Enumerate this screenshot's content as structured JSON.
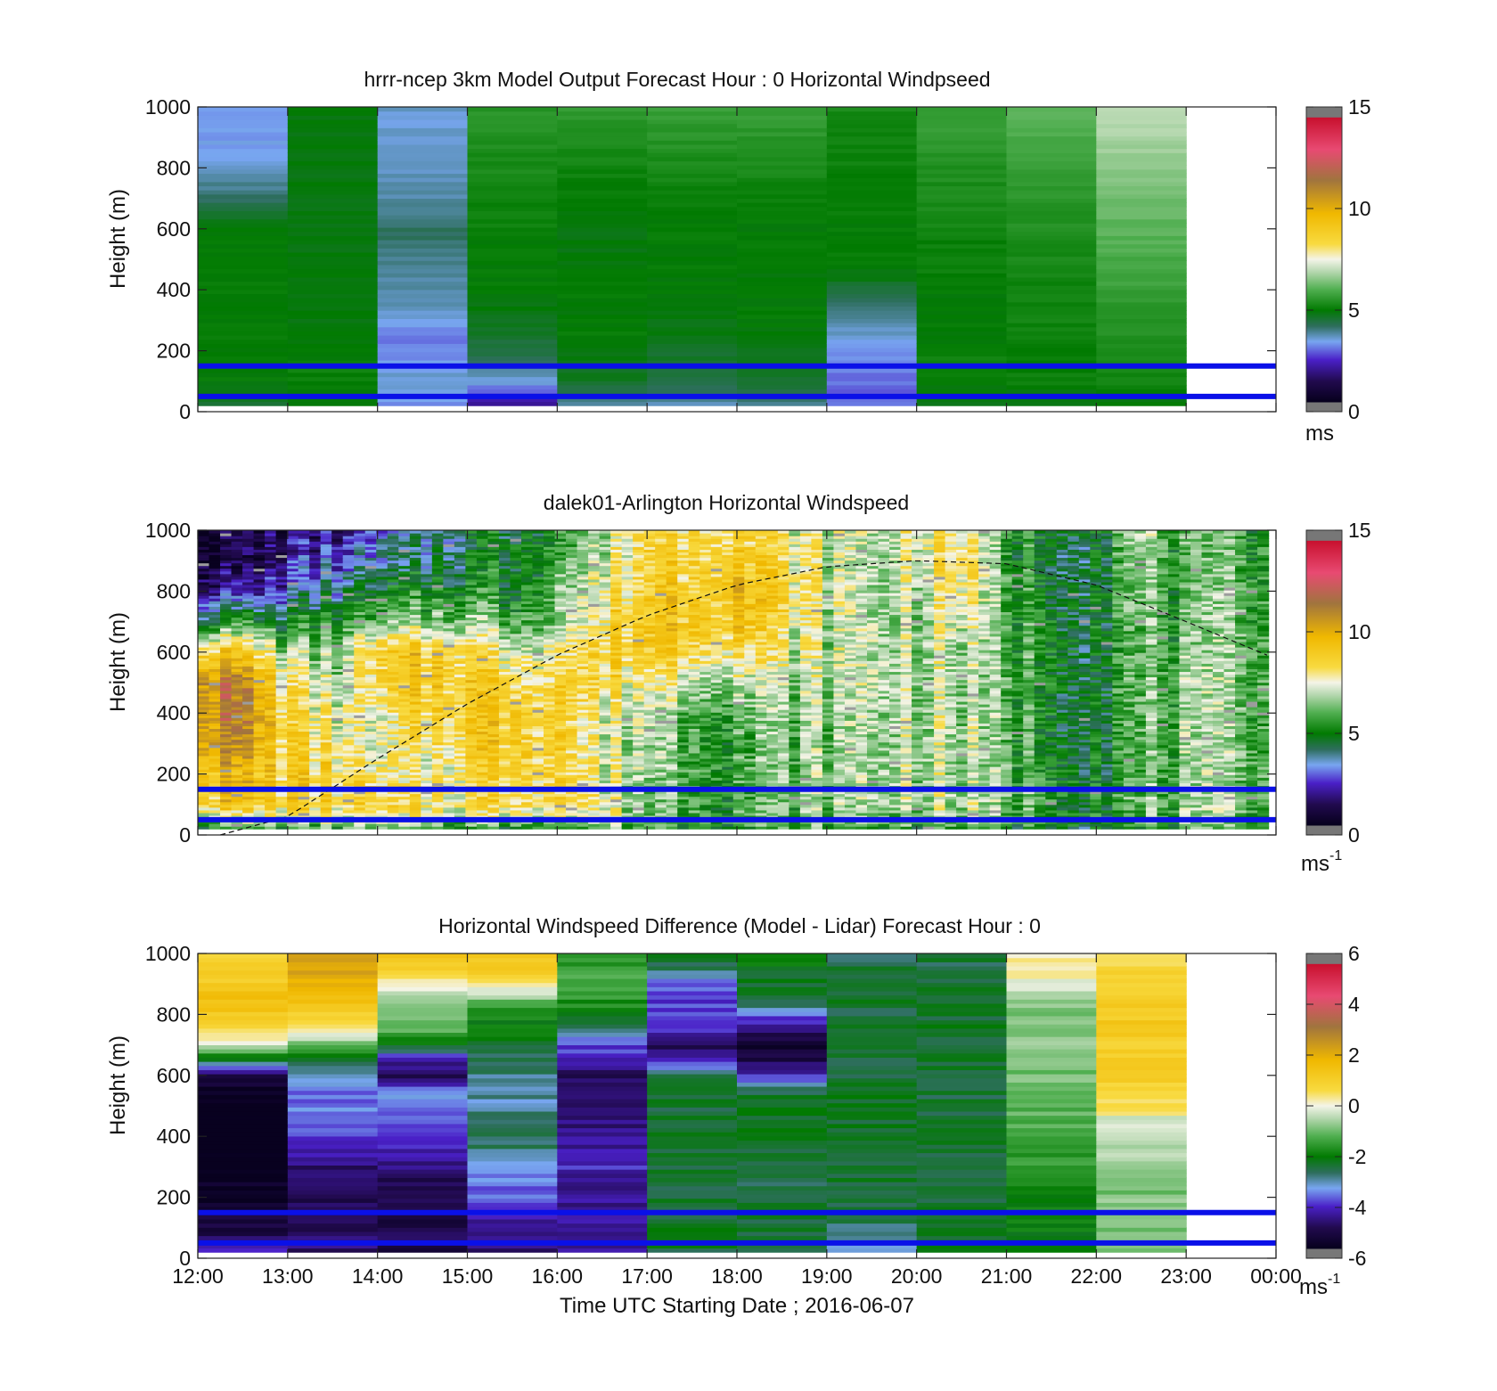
{
  "chart_data": [
    {
      "type": "heatmap",
      "title": "hrrr-ncep 3km Model Output   Forecast Hour : 0 Horizontal Windpseed",
      "ylabel": "Height (m)",
      "xlabel": "",
      "ylim": [
        0,
        1000
      ],
      "yticks": [
        "0",
        "200",
        "400",
        "600",
        "800",
        "1000"
      ],
      "xlim": [
        "12:00",
        "00:00"
      ],
      "xticks": [
        "12:00",
        "13:00",
        "14:00",
        "15:00",
        "16:00",
        "17:00",
        "18:00",
        "19:00",
        "20:00",
        "21:00",
        "22:00",
        "23:00",
        "00:00"
      ],
      "x_tick_labels_shown": false,
      "colorbar": {
        "min": 0,
        "max": 15,
        "ticks": [
          "0",
          "5",
          "10",
          "15"
        ],
        "unit": "ms",
        "unit_sup": ""
      },
      "columns": [
        "12:00",
        "13:00",
        "14:00",
        "15:00",
        "16:00",
        "17:00",
        "18:00",
        "19:00",
        "20:00",
        "21:00",
        "22:00"
      ],
      "heights_m": [
        20,
        50,
        80,
        100,
        150,
        200,
        250,
        300,
        350,
        400,
        450,
        500,
        550,
        600,
        700,
        800,
        900,
        1000
      ],
      "values": [
        [
          4.6,
          4.8,
          3.3,
          2.0,
          3.8,
          3.6,
          3.8,
          3.3,
          4.8,
          4.8,
          4.9
        ],
        [
          4.9,
          4.9,
          3.5,
          2.5,
          4.2,
          4.0,
          4.2,
          3.0,
          4.9,
          4.9,
          5.0
        ],
        [
          4.9,
          5.0,
          3.6,
          3.2,
          4.5,
          4.3,
          4.4,
          3.0,
          5.0,
          5.0,
          5.1
        ],
        [
          5.0,
          5.1,
          3.7,
          3.6,
          4.7,
          4.5,
          4.6,
          3.1,
          5.0,
          5.1,
          5.2
        ],
        [
          5.0,
          5.1,
          3.4,
          4.0,
          4.8,
          4.6,
          4.7,
          3.2,
          5.1,
          5.1,
          5.3
        ],
        [
          5.0,
          5.0,
          3.2,
          4.4,
          4.9,
          4.6,
          4.8,
          3.4,
          5.1,
          5.1,
          5.4
        ],
        [
          5.0,
          5.0,
          3.1,
          4.6,
          5.0,
          4.8,
          4.9,
          3.6,
          5.0,
          5.1,
          5.4
        ],
        [
          5.0,
          4.9,
          3.5,
          4.8,
          5.0,
          4.9,
          5.0,
          3.9,
          5.0,
          5.2,
          5.5
        ],
        [
          5.0,
          4.9,
          3.7,
          4.9,
          5.0,
          5.0,
          5.0,
          4.2,
          5.0,
          5.2,
          5.6
        ],
        [
          5.0,
          4.9,
          3.8,
          5.0,
          5.0,
          5.0,
          5.0,
          4.5,
          5.0,
          5.2,
          5.7
        ],
        [
          5.0,
          4.9,
          3.9,
          5.0,
          5.0,
          5.0,
          5.0,
          4.9,
          5.1,
          5.2,
          5.8
        ],
        [
          5.0,
          4.9,
          4.0,
          5.0,
          4.9,
          5.0,
          5.0,
          5.0,
          5.1,
          5.3,
          5.9
        ],
        [
          5.0,
          4.9,
          4.1,
          5.0,
          4.9,
          5.0,
          5.0,
          5.0,
          5.1,
          5.3,
          6.0
        ],
        [
          5.0,
          4.9,
          4.2,
          5.1,
          4.9,
          5.0,
          5.0,
          5.0,
          5.2,
          5.4,
          6.1
        ],
        [
          4.2,
          4.9,
          3.8,
          5.2,
          5.0,
          5.1,
          5.1,
          5.1,
          5.3,
          5.5,
          6.3
        ],
        [
          3.6,
          4.9,
          3.7,
          5.3,
          5.2,
          5.3,
          5.3,
          5.1,
          5.4,
          5.7,
          6.5
        ],
        [
          3.4,
          4.9,
          3.6,
          5.4,
          5.4,
          5.5,
          5.5,
          5.2,
          5.6,
          5.9,
          6.8
        ],
        [
          3.4,
          4.9,
          3.6,
          5.5,
          5.6,
          5.7,
          5.7,
          5.3,
          5.7,
          6.1,
          7.0
        ]
      ],
      "reference_lines_m": [
        50,
        150
      ],
      "reference_line_color": "#0a10e8"
    },
    {
      "type": "heatmap",
      "title": "dalek01-Arlington  Horizontal Windspeed",
      "ylabel": "Height (m)",
      "xlabel": "",
      "ylim": [
        0,
        1000
      ],
      "yticks": [
        "0",
        "200",
        "400",
        "600",
        "800",
        "1000"
      ],
      "xlim": [
        "12:00",
        "00:00"
      ],
      "x_tick_labels_shown": false,
      "colorbar": {
        "min": 0,
        "max": 15,
        "ticks": [
          "0",
          "5",
          "10",
          "15"
        ],
        "unit": "ms",
        "unit_sup": "-1"
      },
      "time_range_utc": [
        "12:00",
        "23:55"
      ],
      "columns_count": 48,
      "heights_m": [
        20,
        50,
        100,
        150,
        200,
        250,
        300,
        400,
        500,
        600,
        700,
        800,
        900,
        1000
      ],
      "hourly_profile_anchors_ms": {
        "hours": [
          12.0,
          12.5,
          13.0,
          13.5,
          14.0,
          14.5,
          15.0,
          15.5,
          16.0,
          16.5,
          17.0,
          17.5,
          18.0,
          18.5,
          19.0,
          19.5,
          20.0,
          20.5,
          21.0,
          21.5,
          22.0,
          22.5,
          23.0,
          23.5,
          23.9
        ],
        "profiles": [
          [
            5.5,
            7.0,
            9.0,
            9.2,
            9.5,
            10.0,
            10.5,
            11.0,
            11.2,
            9.0,
            5.0,
            2.5,
            1.2,
            1.0
          ],
          [
            5.5,
            7.0,
            9.0,
            9.3,
            9.5,
            10.0,
            10.5,
            11.0,
            11.0,
            9.0,
            5.5,
            2.2,
            1.0,
            1.0
          ],
          [
            5.6,
            7.0,
            8.8,
            8.8,
            8.8,
            8.8,
            8.5,
            8.2,
            8.0,
            6.8,
            5.0,
            3.0,
            2.0,
            1.6
          ],
          [
            5.6,
            7.0,
            8.5,
            8.5,
            8.5,
            8.2,
            8.0,
            7.5,
            7.0,
            6.2,
            5.5,
            4.0,
            2.8,
            2.0
          ],
          [
            5.5,
            7.0,
            8.0,
            7.8,
            7.6,
            7.2,
            7.0,
            7.0,
            8.0,
            8.5,
            6.0,
            4.5,
            3.5,
            2.8
          ],
          [
            5.4,
            7.0,
            8.0,
            7.8,
            7.5,
            7.5,
            7.8,
            8.4,
            9.0,
            9.0,
            6.5,
            5.0,
            4.0,
            3.5
          ],
          [
            5.4,
            6.8,
            8.2,
            8.2,
            8.2,
            8.5,
            8.8,
            9.0,
            9.0,
            8.5,
            6.8,
            5.5,
            4.8,
            4.5
          ],
          [
            5.4,
            7.0,
            8.5,
            8.5,
            8.8,
            9.0,
            9.0,
            9.0,
            8.5,
            7.5,
            6.0,
            5.0,
            5.0,
            5.0
          ],
          [
            5.5,
            7.2,
            8.6,
            8.6,
            8.8,
            9.0,
            9.0,
            9.0,
            8.8,
            8.0,
            6.8,
            6.5,
            6.0,
            5.5
          ],
          [
            5.5,
            7.0,
            7.5,
            7.5,
            7.5,
            7.2,
            7.2,
            7.5,
            8.2,
            8.5,
            8.0,
            7.5,
            7.0,
            6.5
          ],
          [
            5.6,
            6.5,
            6.5,
            6.5,
            6.8,
            7.0,
            7.0,
            7.0,
            7.8,
            9.0,
            9.2,
            9.0,
            8.8,
            8.5
          ],
          [
            5.5,
            6.2,
            6.0,
            6.0,
            6.2,
            6.2,
            6.0,
            6.5,
            7.5,
            8.8,
            9.2,
            9.0,
            8.8,
            8.8
          ],
          [
            5.5,
            6.0,
            5.8,
            5.8,
            6.0,
            6.0,
            5.8,
            6.2,
            7.0,
            8.5,
            9.5,
            9.8,
            9.0,
            8.8
          ],
          [
            5.5,
            6.0,
            6.0,
            6.0,
            6.2,
            6.2,
            6.2,
            6.5,
            6.8,
            7.5,
            8.0,
            8.5,
            8.2,
            7.8
          ],
          [
            5.6,
            6.2,
            6.5,
            6.5,
            6.5,
            6.5,
            6.5,
            6.5,
            6.8,
            7.0,
            7.2,
            7.2,
            7.2,
            7.2
          ],
          [
            5.6,
            6.3,
            6.8,
            6.8,
            6.8,
            6.8,
            6.8,
            6.8,
            7.0,
            7.0,
            7.0,
            6.8,
            6.8,
            6.8
          ],
          [
            5.5,
            6.3,
            7.0,
            7.0,
            7.0,
            7.0,
            7.0,
            7.0,
            7.0,
            7.0,
            7.0,
            7.2,
            7.5,
            7.8
          ],
          [
            5.5,
            6.3,
            6.8,
            6.8,
            6.8,
            6.8,
            6.8,
            6.8,
            6.8,
            7.0,
            7.5,
            8.0,
            8.5,
            8.0
          ],
          [
            5.4,
            6.0,
            6.2,
            6.2,
            6.2,
            6.0,
            6.0,
            6.0,
            6.0,
            6.0,
            6.0,
            5.8,
            5.6,
            5.5
          ],
          [
            5.2,
            5.8,
            5.8,
            5.8,
            5.6,
            5.5,
            5.5,
            5.4,
            5.4,
            5.4,
            5.3,
            5.2,
            5.0,
            5.0
          ],
          [
            5.0,
            5.5,
            5.5,
            5.4,
            5.2,
            5.0,
            5.0,
            5.0,
            4.9,
            5.0,
            5.0,
            4.9,
            4.9,
            5.0
          ],
          [
            5.3,
            5.8,
            6.0,
            6.0,
            6.0,
            6.0,
            6.0,
            6.0,
            6.0,
            6.0,
            6.0,
            6.2,
            6.5,
            6.8
          ],
          [
            5.4,
            6.0,
            6.2,
            6.2,
            6.2,
            6.2,
            6.2,
            6.2,
            6.2,
            6.0,
            5.8,
            5.6,
            5.5,
            5.5
          ],
          [
            5.5,
            6.0,
            6.3,
            6.3,
            6.3,
            6.3,
            6.3,
            6.3,
            6.3,
            6.3,
            6.2,
            6.0,
            5.8,
            5.8
          ],
          [
            5.5,
            6.0,
            6.5,
            6.5,
            6.5,
            6.4,
            6.4,
            6.4,
            6.4,
            6.4,
            6.3,
            6.2,
            6.0,
            6.0
          ]
        ]
      },
      "boundary_layer_curve": {
        "hours": [
          12.25,
          13.0,
          14.0,
          15.0,
          16.0,
          17.0,
          18.0,
          19.0,
          20.0,
          21.0,
          22.0,
          23.0,
          23.9
        ],
        "height_m": [
          0,
          60,
          250,
          430,
          590,
          720,
          820,
          880,
          900,
          890,
          820,
          700,
          590
        ]
      },
      "reference_lines_m": [
        50,
        150
      ],
      "reference_line_color": "#0a10e8"
    },
    {
      "type": "heatmap",
      "title": "Horizontal Windspeed Difference (Model - Lidar) Forecast Hour : 0",
      "ylabel": "Height (m)",
      "xlabel": "Time UTC  Starting Date ; 2016-06-07",
      "ylim": [
        0,
        1000
      ],
      "yticks": [
        "0",
        "200",
        "400",
        "600",
        "800",
        "1000"
      ],
      "xlim": [
        "12:00",
        "00:00"
      ],
      "xticks": [
        "12:00",
        "13:00",
        "14:00",
        "15:00",
        "16:00",
        "17:00",
        "18:00",
        "19:00",
        "20:00",
        "21:00",
        "22:00",
        "23:00",
        "00:00"
      ],
      "x_tick_labels_shown": true,
      "colorbar": {
        "min": -6,
        "max": 6,
        "ticks": [
          "-6",
          "-4",
          "-2",
          "0",
          "2",
          "4",
          "6"
        ],
        "unit": "ms",
        "unit_sup": "-1"
      },
      "columns": [
        "12:00",
        "13:00",
        "14:00",
        "15:00",
        "16:00",
        "17:00",
        "18:00",
        "19:00",
        "20:00",
        "21:00",
        "22:00"
      ],
      "heights_m": [
        20,
        50,
        100,
        150,
        200,
        250,
        300,
        350,
        400,
        450,
        500,
        550,
        600,
        650,
        700,
        750,
        800,
        850,
        900,
        950,
        1000
      ],
      "values": [
        [
          -4.0,
          -4.5,
          -5.0,
          -4.5,
          -4.2,
          -2.5,
          -2.5,
          -3.0,
          -2.0,
          -2.0,
          -0.8
        ],
        [
          -4.6,
          -4.6,
          -4.8,
          -4.4,
          -4.2,
          -2.3,
          -2.4,
          -3.2,
          -2.1,
          -2.0,
          -0.8
        ],
        [
          -5.0,
          -4.8,
          -4.9,
          -4.6,
          -4.4,
          -2.3,
          -2.4,
          -2.8,
          -2.2,
          -2.0,
          -0.8
        ],
        [
          -5.2,
          -4.8,
          -5.0,
          -3.8,
          -4.3,
          -2.3,
          -2.4,
          -2.4,
          -2.3,
          -2.0,
          -0.7
        ],
        [
          -5.4,
          -4.9,
          -5.0,
          -3.6,
          -4.4,
          -2.4,
          -2.4,
          -2.3,
          -2.4,
          -2.1,
          -0.9
        ],
        [
          -5.5,
          -4.8,
          -4.8,
          -3.5,
          -4.4,
          -2.4,
          -2.5,
          -2.3,
          -2.4,
          -1.8,
          -1.0
        ],
        [
          -5.6,
          -4.6,
          -4.5,
          -3.3,
          -4.0,
          -2.3,
          -2.4,
          -2.3,
          -2.4,
          -1.6,
          -0.8
        ],
        [
          -5.8,
          -4.2,
          -4.2,
          -2.8,
          -4.2,
          -2.3,
          -2.3,
          -2.3,
          -2.3,
          -1.4,
          -0.6
        ],
        [
          -6.0,
          -3.8,
          -4.0,
          -2.6,
          -4.2,
          -2.3,
          -2.3,
          -2.3,
          -2.4,
          -1.3,
          -0.5
        ],
        [
          -5.8,
          -3.5,
          -3.6,
          -2.8,
          -4.5,
          -2.3,
          -2.2,
          -2.3,
          -2.3,
          -1.2,
          -0.3
        ],
        [
          -5.8,
          -3.5,
          -3.5,
          -2.9,
          -4.6,
          -2.4,
          -2.3,
          -2.3,
          -2.4,
          -1.1,
          0.5
        ],
        [
          -5.6,
          -3.7,
          -3.3,
          -3.0,
          -4.8,
          -2.4,
          -2.4,
          -2.3,
          -2.4,
          -1.0,
          0.8
        ],
        [
          -5.0,
          -3.0,
          -4.8,
          -2.8,
          -4.8,
          -2.5,
          -3.8,
          -2.4,
          -2.4,
          -1.0,
          1.0
        ],
        [
          -2.4,
          -2.4,
          -4.2,
          -2.5,
          -4.0,
          -4.2,
          -5.0,
          -2.4,
          -2.3,
          -0.9,
          1.2
        ],
        [
          -0.4,
          -1.2,
          -2.0,
          -2.3,
          -3.8,
          -4.8,
          -5.3,
          -2.3,
          -2.3,
          -0.8,
          1.0
        ],
        [
          0.6,
          0.3,
          -1.2,
          -2.0,
          -2.8,
          -4.0,
          -4.5,
          -2.3,
          -2.2,
          -0.8,
          1.1
        ],
        [
          1.2,
          1.0,
          -1.0,
          -1.8,
          -2.0,
          -3.8,
          -3.6,
          -2.4,
          -2.3,
          -1.0,
          1.2
        ],
        [
          1.5,
          1.5,
          -0.6,
          -1.0,
          -1.6,
          -3.8,
          -2.4,
          -2.3,
          -2.3,
          -0.8,
          1.1
        ],
        [
          1.2,
          1.8,
          0.3,
          0.5,
          -1.2,
          -3.6,
          -2.2,
          -2.2,
          -2.4,
          0.0,
          1.0
        ],
        [
          1.0,
          2.2,
          1.0,
          1.0,
          -1.4,
          -2.5,
          -2.1,
          -2.4,
          -2.5,
          0.2,
          0.9
        ],
        [
          0.8,
          2.0,
          1.2,
          1.3,
          -1.6,
          -2.3,
          -2.0,
          -2.5,
          -2.4,
          0.3,
          0.5
        ]
      ],
      "reference_lines_m": [
        50,
        150
      ],
      "reference_line_color": "#0a10e8"
    }
  ]
}
